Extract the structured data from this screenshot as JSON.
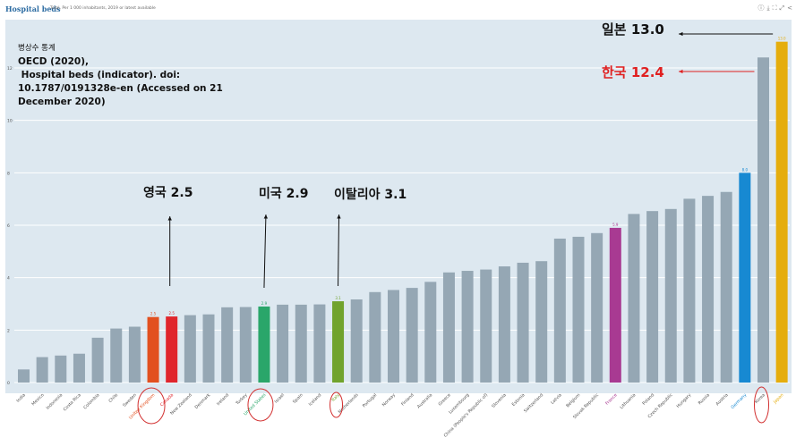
{
  "header": {
    "brand": "Hospital beds",
    "subtitle": "Total, Per 1 000 inhabitants, 2019 or latest available"
  },
  "icons": [
    "info-icon",
    "download-icon",
    "fullscreen-icon",
    "expand-icon",
    "share-icon"
  ],
  "source_note": {
    "line1": "병상수 통계",
    "line2": "OECD (2020),",
    "line3": " Hospital beds (indicator). doi:",
    "line4": "10.1787/0191328e-en (Accessed on 21",
    "line5": "December 2020)"
  },
  "annotations": {
    "japan": "일본 13.0",
    "korea": "한국 12.4",
    "uk": "영국 2.5",
    "us": "미국 2.9",
    "italy": "이탈리아 3.1"
  },
  "colors": {
    "default_bar": "#95a7b4",
    "uk": "#e2501f",
    "canada": "#e0252c",
    "us": "#2aa66a",
    "italy": "#71a32d",
    "france": "#a83a92",
    "germany": "#1789d2",
    "japan": "#e5ad0d",
    "plot_bg": "#dde8f0",
    "annotation_red": "#e02020"
  },
  "chart_data": {
    "type": "bar",
    "ylim": [
      0,
      13.5
    ],
    "yticks": [
      0,
      2,
      4,
      6,
      8,
      10,
      12
    ],
    "grid": true,
    "categories": [
      "India",
      "Mexico",
      "Indonesia",
      "Costa Rica",
      "Colombia",
      "Chile",
      "Sweden",
      "United Kingdom",
      "Canada",
      "New Zealand",
      "Denmark",
      "Ireland",
      "Turkey",
      "United States",
      "Israel",
      "Spain",
      "Iceland",
      "Italy",
      "Netherlands",
      "Portugal",
      "Norway",
      "Finland",
      "Australia",
      "Greece",
      "Luxembourg",
      "China (People's Republic of)",
      "Slovenia",
      "Estonia",
      "Switzerland",
      "Latvia",
      "Belgium",
      "Slovak Republic",
      "France",
      "Lithuania",
      "Poland",
      "Czech Republic",
      "Hungary",
      "Russia",
      "Austria",
      "Germany",
      "Korea",
      "Japan"
    ],
    "values": [
      0.5,
      0.97,
      1.03,
      1.1,
      1.71,
      2.06,
      2.13,
      2.5,
      2.52,
      2.57,
      2.6,
      2.87,
      2.88,
      2.9,
      2.97,
      2.97,
      2.98,
      3.1,
      3.17,
      3.45,
      3.53,
      3.61,
      3.84,
      4.2,
      4.26,
      4.31,
      4.43,
      4.57,
      4.63,
      5.49,
      5.56,
      5.7,
      5.9,
      6.43,
      6.54,
      6.62,
      7.01,
      7.12,
      7.27,
      8.0,
      12.4,
      13.0
    ],
    "highlight": {
      "United Kingdom": "uk",
      "Canada": "canada",
      "United States": "us",
      "Italy": "italy",
      "France": "france",
      "Germany": "germany",
      "Japan": "japan"
    },
    "data_labels": {
      "United Kingdom": "2.5",
      "Canada": "2.5",
      "United States": "2.9",
      "Italy": "3.1",
      "France": "5.9",
      "Germany": "8.0",
      "Japan": "13.0"
    }
  }
}
